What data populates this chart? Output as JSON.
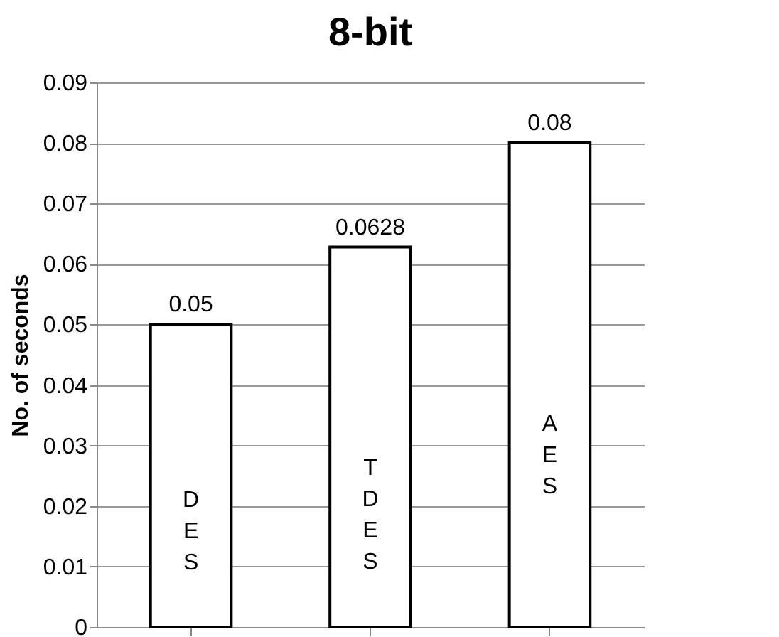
{
  "chart_data": {
    "type": "bar",
    "title": "8-bit",
    "ylabel": "No. of seconds",
    "categories": [
      "DES",
      "TDES",
      "AES"
    ],
    "values": [
      0.05,
      0.0628,
      0.08
    ],
    "color": "#ffffff",
    "ylim": [
      0,
      0.09
    ],
    "yticks": [
      0,
      0.01,
      0.02,
      0.03,
      0.04,
      0.05,
      0.06,
      0.07,
      0.08,
      0.09
    ],
    "grid": "y",
    "data_labels": true
  }
}
